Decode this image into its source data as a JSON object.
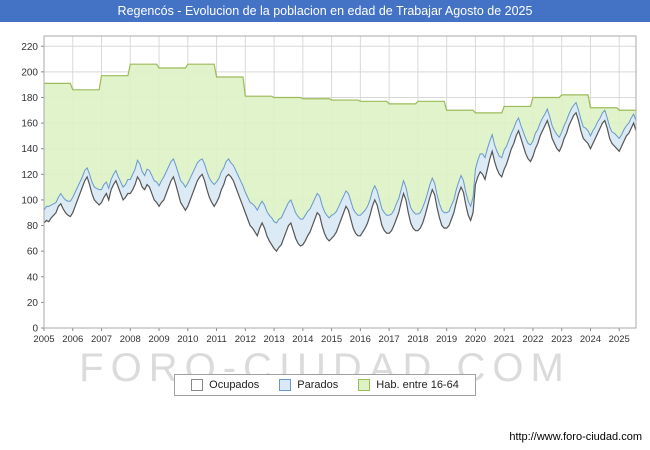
{
  "title": "Regencós - Evolucion de la poblacion en edad de Trabajar Agosto de 2025",
  "watermark": "FORO-CIUDAD.COM",
  "footer_url": "http://www.foro-ciudad.com",
  "colors": {
    "title_bg": "#4472c4",
    "title_text": "#ffffff",
    "grid": "#d9d9d9",
    "plot_border": "#aaaaaa",
    "axis_text": "#333333",
    "hab_fill": "#ddf2c4",
    "hab_line": "#9bbb59",
    "parados_fill": "#dbe9f7",
    "parados_line": "#6699cc",
    "ocupados_fill": "#ffffff",
    "ocupados_line": "#555555"
  },
  "legend": [
    {
      "label": "Ocupados",
      "fill": "#ffffff",
      "border": "#888888"
    },
    {
      "label": "Parados",
      "fill": "#dbe9f7",
      "border": "#6699cc"
    },
    {
      "label": "Hab. entre 16-64",
      "fill": "#ddf2c4",
      "border": "#9bbb59"
    }
  ],
  "chart_data": {
    "type": "area",
    "title": "Regencós - Evolucion de la poblacion en edad de Trabajar Agosto de 2025",
    "xlabel": "",
    "ylabel": "",
    "ylim": [
      0,
      220
    ],
    "ytick_step": 20,
    "plot_max": 228,
    "grid": true,
    "legend_position": "bottom",
    "x_years": [
      2005,
      2006,
      2007,
      2008,
      2009,
      2010,
      2011,
      2012,
      2013,
      2014,
      2015,
      2016,
      2017,
      2018,
      2019,
      2020,
      2021,
      2022,
      2023,
      2024,
      2025
    ],
    "months_last_year": 8,
    "series": [
      {
        "name": "Ocupados",
        "frequency": "monthly",
        "values": [
          82,
          84,
          83,
          86,
          88,
          90,
          95,
          97,
          93,
          90,
          88,
          87,
          90,
          95,
          100,
          105,
          110,
          115,
          118,
          112,
          105,
          100,
          98,
          96,
          98,
          102,
          105,
          100,
          108,
          112,
          115,
          110,
          105,
          100,
          102,
          105,
          105,
          108,
          112,
          118,
          115,
          110,
          108,
          112,
          110,
          105,
          100,
          98,
          95,
          98,
          100,
          105,
          110,
          115,
          118,
          112,
          105,
          98,
          95,
          92,
          95,
          100,
          105,
          110,
          115,
          118,
          120,
          115,
          108,
          102,
          98,
          95,
          98,
          102,
          108,
          112,
          118,
          120,
          118,
          115,
          110,
          105,
          100,
          95,
          90,
          85,
          80,
          78,
          75,
          72,
          78,
          82,
          78,
          72,
          68,
          65,
          62,
          60,
          63,
          65,
          70,
          75,
          80,
          82,
          76,
          70,
          66,
          64,
          65,
          68,
          72,
          75,
          80,
          85,
          90,
          88,
          80,
          74,
          70,
          68,
          70,
          72,
          75,
          80,
          85,
          90,
          95,
          92,
          85,
          78,
          74,
          72,
          72,
          75,
          78,
          82,
          88,
          95,
          100,
          96,
          88,
          80,
          76,
          74,
          74,
          76,
          80,
          85,
          90,
          98,
          105,
          100,
          90,
          82,
          78,
          76,
          76,
          78,
          82,
          88,
          95,
          102,
          108,
          104,
          94,
          86,
          80,
          78,
          78,
          80,
          85,
          90,
          98,
          105,
          110,
          106,
          96,
          88,
          84,
          90,
          112,
          118,
          122,
          120,
          116,
          124,
          132,
          138,
          130,
          124,
          120,
          118,
          124,
          128,
          134,
          140,
          144,
          150,
          154,
          148,
          142,
          136,
          132,
          130,
          134,
          140,
          144,
          150,
          154,
          158,
          162,
          156,
          148,
          144,
          140,
          138,
          142,
          148,
          152,
          158,
          162,
          166,
          168,
          162,
          154,
          148,
          146,
          144,
          140,
          144,
          148,
          152,
          156,
          160,
          162,
          156,
          148,
          144,
          142,
          140,
          138,
          142,
          146,
          150,
          152,
          156,
          160,
          154
        ]
      },
      {
        "name": "Parados",
        "frequency": "monthly",
        "stacked_on": "Ocupados",
        "values": [
          10,
          11,
          12,
          10,
          9,
          8,
          7,
          8,
          9,
          10,
          11,
          12,
          12,
          11,
          10,
          9,
          8,
          8,
          7,
          8,
          9,
          10,
          11,
          12,
          10,
          10,
          9,
          9,
          8,
          8,
          8,
          8,
          9,
          10,
          10,
          11,
          11,
          12,
          12,
          13,
          13,
          12,
          11,
          12,
          13,
          14,
          15,
          16,
          16,
          17,
          18,
          17,
          16,
          15,
          14,
          15,
          16,
          17,
          18,
          18,
          18,
          17,
          16,
          15,
          14,
          13,
          12,
          13,
          14,
          15,
          16,
          17,
          16,
          15,
          14,
          13,
          12,
          12,
          11,
          12,
          13,
          14,
          15,
          16,
          16,
          17,
          18,
          19,
          20,
          20,
          18,
          17,
          18,
          19,
          20,
          21,
          21,
          22,
          22,
          21,
          20,
          19,
          18,
          18,
          19,
          20,
          21,
          21,
          20,
          20,
          19,
          18,
          17,
          16,
          15,
          15,
          16,
          17,
          18,
          18,
          18,
          17,
          16,
          15,
          14,
          13,
          12,
          13,
          14,
          15,
          16,
          16,
          16,
          15,
          14,
          13,
          12,
          12,
          11,
          11,
          12,
          13,
          14,
          14,
          14,
          13,
          12,
          12,
          11,
          10,
          10,
          10,
          11,
          12,
          13,
          13,
          13,
          12,
          12,
          11,
          10,
          10,
          9,
          9,
          10,
          11,
          12,
          12,
          12,
          11,
          11,
          10,
          10,
          9,
          9,
          9,
          10,
          11,
          11,
          12,
          12,
          13,
          14,
          16,
          17,
          16,
          14,
          13,
          13,
          14,
          14,
          15,
          15,
          14,
          13,
          12,
          12,
          11,
          10,
          10,
          11,
          12,
          12,
          13,
          12,
          12,
          11,
          10,
          10,
          9,
          9,
          9,
          10,
          10,
          11,
          11,
          11,
          10,
          10,
          9,
          9,
          8,
          8,
          8,
          9,
          9,
          10,
          10,
          10,
          10,
          9,
          9,
          8,
          8,
          8,
          8,
          9,
          9,
          10,
          10,
          10,
          9,
          9,
          8,
          8,
          8,
          7,
          8
        ]
      },
      {
        "name": "Hab. entre 16-64",
        "frequency": "yearly",
        "yearly_values": [
          191,
          186,
          197,
          206,
          203,
          206,
          196,
          181,
          180,
          179,
          178,
          177,
          175,
          177,
          170,
          168,
          173,
          180,
          182,
          172,
          170
        ]
      }
    ]
  }
}
